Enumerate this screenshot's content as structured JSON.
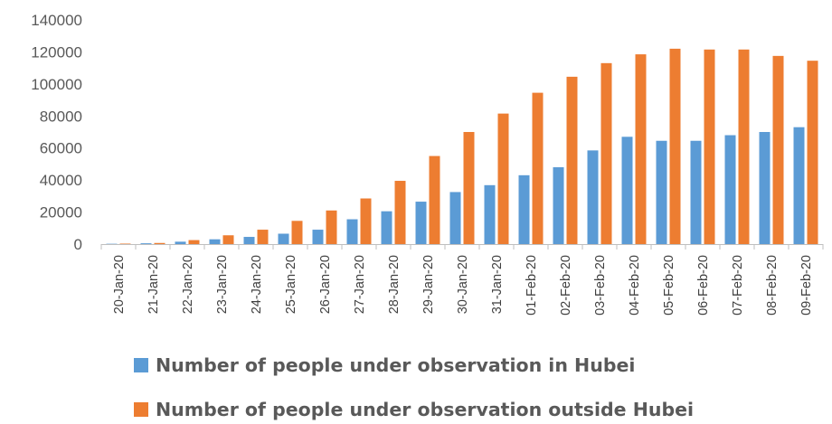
{
  "chart_data": {
    "type": "bar",
    "categories": [
      "20-Jan-20",
      "21-Jan-20",
      "22-Jan-20",
      "23-Jan-20",
      "24-Jan-20",
      "25-Jan-20",
      "26-Jan-20",
      "27-Jan-20",
      "28-Jan-20",
      "29-Jan-20",
      "30-Jan-20",
      "31-Jan-20",
      "01-Feb-20",
      "02-Feb-20",
      "03-Feb-20",
      "04-Feb-20",
      "05-Feb-20",
      "06-Feb-20",
      "07-Feb-20",
      "08-Feb-20",
      "09-Feb-20"
    ],
    "series": [
      {
        "name": "Number of people under observation in Hubei",
        "color": "#5b9bd5",
        "values": [
          200,
          500,
          1500,
          3000,
          4500,
          6500,
          9000,
          15500,
          20500,
          26500,
          32500,
          36800,
          43000,
          48000,
          58500,
          67000,
          64500,
          64500,
          68000,
          70000,
          73000
        ]
      },
      {
        "name": "Number of people under observation outside Hubei",
        "color": "#ed7d31",
        "values": [
          300,
          700,
          2500,
          5500,
          9000,
          14500,
          21000,
          28500,
          39500,
          55000,
          70000,
          81500,
          94500,
          104500,
          113000,
          118500,
          122000,
          121500,
          121500,
          117500,
          114500
        ]
      }
    ],
    "yticks": [
      "0",
      "20000",
      "40000",
      "60000",
      "80000",
      "100000",
      "120000",
      "140000"
    ],
    "ylim": [
      0,
      140000
    ],
    "title": "",
    "xlabel": "",
    "ylabel": "",
    "grid": false,
    "legend_position": "bottom"
  }
}
